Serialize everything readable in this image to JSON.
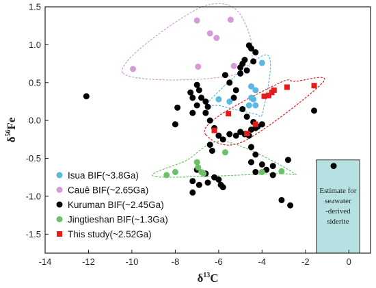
{
  "chart_data": {
    "type": "scatter",
    "xlabel": "δ13C",
    "ylabel": "δ56Fe",
    "xlim": [
      -14,
      1
    ],
    "ylim": [
      -1.75,
      1.5
    ],
    "xticks": [
      -14,
      -12,
      -10,
      -8,
      -6,
      -4,
      -2,
      0
    ],
    "yticks": [
      1.5,
      1.0,
      0.5,
      0.0,
      -0.5,
      -1.0,
      -1.5
    ],
    "series": [
      {
        "name": "Isua BIF(~3.8Ga)",
        "color": "#5bb8e0",
        "marker": "circle",
        "points": [
          [
            -6.0,
            0.28
          ],
          [
            -4.0,
            0.76
          ],
          [
            -4.5,
            0.45
          ],
          [
            -4.3,
            0.4
          ],
          [
            -4.5,
            0.3
          ],
          [
            -4.4,
            0.28
          ],
          [
            -4.3,
            0.2
          ],
          [
            -5.5,
            0.25
          ],
          [
            -4.6,
            0.2
          ]
        ]
      },
      {
        "name": "Cauê BIF(~2.65Ga)",
        "color": "#d59ad9",
        "marker": "circle",
        "points": [
          [
            -9.95,
            0.68
          ],
          [
            -7.0,
            1.32
          ],
          [
            -6.4,
            1.15
          ],
          [
            -6.1,
            1.09
          ],
          [
            -5.45,
            1.33
          ],
          [
            -6.95,
            0.71
          ],
          [
            -5.3,
            0.72
          ]
        ]
      },
      {
        "name": "Kuruman BIF(~2.45Ga)",
        "color": "#000000",
        "marker": "circle",
        "points": [
          [
            -12.1,
            0.32
          ],
          [
            -7.2,
            0.3
          ],
          [
            -7.3,
            0.37
          ],
          [
            -7.0,
            0.47
          ],
          [
            -6.9,
            0.4
          ],
          [
            -6.8,
            0.3
          ],
          [
            -6.6,
            0.25
          ],
          [
            -6.5,
            0.18
          ],
          [
            -7.9,
            0.17
          ],
          [
            -8.0,
            -0.05
          ],
          [
            -7.0,
            0.2
          ],
          [
            -6.6,
            0.1
          ],
          [
            -7.2,
            0.1
          ],
          [
            -6.4,
            0.0
          ],
          [
            -6.2,
            -0.1
          ],
          [
            -6.0,
            -0.2
          ],
          [
            -5.8,
            -0.25
          ],
          [
            -5.5,
            -0.18
          ],
          [
            -5.2,
            -0.2
          ],
          [
            -5.0,
            -0.15
          ],
          [
            -4.8,
            -0.18
          ],
          [
            -4.6,
            -0.2
          ],
          [
            -4.5,
            -0.12
          ],
          [
            -4.3,
            -0.1
          ],
          [
            -4.0,
            -0.05
          ],
          [
            -5.7,
            0.6
          ],
          [
            -5.5,
            0.5
          ],
          [
            -5.0,
            0.7
          ],
          [
            -4.9,
            0.75
          ],
          [
            -4.8,
            0.8
          ],
          [
            -4.6,
            0.99
          ],
          [
            -4.5,
            0.95
          ],
          [
            -4.3,
            0.9
          ],
          [
            -4.4,
            0.78
          ],
          [
            -4.7,
            0.66
          ],
          [
            -5.0,
            0.62
          ],
          [
            -5.2,
            0.4
          ],
          [
            -5.3,
            0.3
          ],
          [
            -4.9,
            0.15
          ],
          [
            -4.7,
            0.05
          ],
          [
            -4.4,
            -0.02
          ],
          [
            -4.2,
            -0.08
          ],
          [
            -6.4,
            -0.32
          ],
          [
            -6.3,
            -0.4
          ],
          [
            -4.5,
            -0.35
          ],
          [
            -4.3,
            -0.45
          ],
          [
            -4.5,
            -0.55
          ],
          [
            -4.0,
            -0.58
          ],
          [
            -3.8,
            -0.65
          ],
          [
            -4.3,
            -0.68
          ],
          [
            -3.5,
            -0.6
          ],
          [
            -3.5,
            -0.72
          ],
          [
            -7.0,
            -0.65
          ],
          [
            -7.2,
            -0.8
          ],
          [
            -6.9,
            -0.85
          ],
          [
            -6.5,
            -0.82
          ],
          [
            -6.2,
            -0.75
          ],
          [
            -6.0,
            -0.78
          ],
          [
            -5.9,
            -0.85
          ],
          [
            -5.8,
            -0.88
          ],
          [
            -6.6,
            -0.7
          ],
          [
            -7.2,
            -0.95
          ],
          [
            -2.8,
            -0.52
          ],
          [
            -3.1,
            -1.05
          ],
          [
            -2.7,
            -1.12
          ],
          [
            -1.6,
            0.13
          ],
          [
            -0.7,
            -0.6
          ]
        ]
      },
      {
        "name": "Jingtieshan BIF(~1.3Ga)",
        "color": "#6cc06a",
        "marker": "circle",
        "points": [
          [
            -8.4,
            -0.72
          ],
          [
            -8.0,
            -0.68
          ],
          [
            -7.0,
            -0.55
          ],
          [
            -6.95,
            -0.62
          ],
          [
            -6.8,
            -0.68
          ],
          [
            -6.7,
            -0.7
          ],
          [
            -5.7,
            -0.42
          ],
          [
            -3.1,
            -0.67
          ],
          [
            -4.0,
            -0.68
          ]
        ]
      },
      {
        "name": "This study(~2.52Ga)",
        "color": "#e41b1b",
        "marker": "square",
        "points": [
          [
            -1.6,
            0.46
          ],
          [
            -2.85,
            0.44
          ],
          [
            -3.45,
            0.4
          ],
          [
            -3.55,
            0.37
          ],
          [
            -3.7,
            0.33
          ],
          [
            -3.9,
            0.32
          ],
          [
            -5.55,
            0.09
          ],
          [
            -6.2,
            -0.13
          ],
          [
            -4.7,
            -0.17
          ],
          [
            -4.3,
            -0.05
          ]
        ]
      }
    ],
    "annotation": "Estimate for seawater -derived siderite",
    "annotation_box": {
      "x": [
        -1.5,
        0.5
      ],
      "y": [
        -1.75,
        -0.52
      ],
      "fill": "#b7e0e2"
    },
    "grid": false,
    "legend_position": "bottom-left"
  }
}
